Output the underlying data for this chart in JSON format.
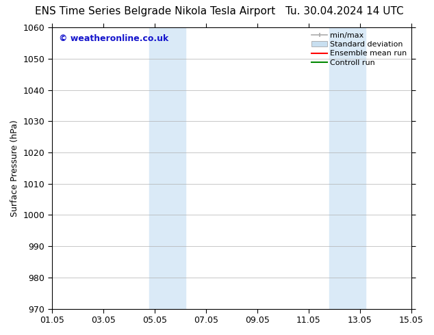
{
  "title_left": "ENS Time Series Belgrade Nikola Tesla Airport",
  "title_right": "Tu. 30.04.2024 14 UTC",
  "ylabel": "Surface Pressure (hPa)",
  "ylim": [
    970,
    1060
  ],
  "yticks": [
    970,
    980,
    990,
    1000,
    1010,
    1020,
    1030,
    1040,
    1050,
    1060
  ],
  "xtick_labels": [
    "01.05",
    "03.05",
    "05.05",
    "07.05",
    "09.05",
    "11.05",
    "13.05",
    "15.05"
  ],
  "xtick_positions": [
    0,
    2,
    4,
    6,
    8,
    10,
    12,
    14
  ],
  "x_num_days": 14,
  "shaded_bands": [
    {
      "x_start": 3.8,
      "x_end": 5.2,
      "color": "#daeaf7"
    },
    {
      "x_start": 10.8,
      "x_end": 12.2,
      "color": "#daeaf7"
    }
  ],
  "watermark": "© weatheronline.co.uk",
  "watermark_color": "#1515cc",
  "bg_color": "#ffffff",
  "plot_bg_color": "#ffffff",
  "grid_color": "#b0b0b0",
  "legend_entries": [
    {
      "label": "min/max",
      "color": "#aaaaaa",
      "lw": 1.2,
      "style": "errbar"
    },
    {
      "label": "Standard deviation",
      "color": "#c8dff0",
      "lw": 8,
      "style": "bar"
    },
    {
      "label": "Ensemble mean run",
      "color": "#ff0000",
      "lw": 1.5,
      "style": "line"
    },
    {
      "label": "Controll run",
      "color": "#008800",
      "lw": 1.5,
      "style": "line"
    }
  ],
  "title_fontsize": 11,
  "axis_fontsize": 9,
  "tick_fontsize": 9,
  "watermark_fontsize": 9,
  "legend_fontsize": 8
}
